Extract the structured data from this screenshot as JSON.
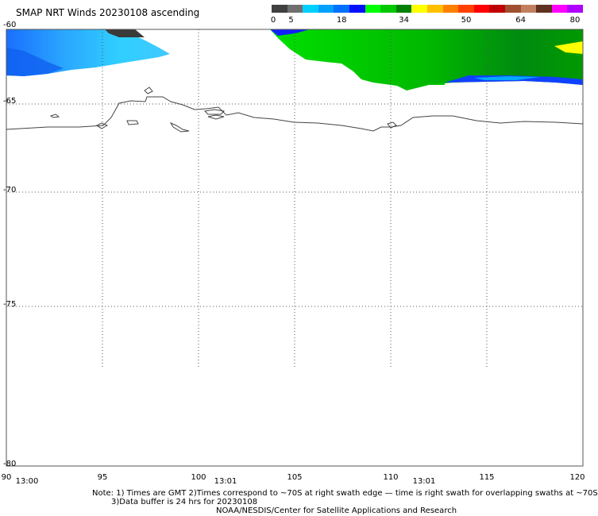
{
  "title": "SMAP NRT Winds 20230108 ascending",
  "legend": {
    "ticks": [
      "0",
      "5",
      "18",
      "34",
      "50",
      "64",
      "80"
    ],
    "colors": [
      "#404040",
      "#707070",
      "#00d0ff",
      "#00a0ff",
      "#0070ff",
      "#0010ff",
      "#00ff00",
      "#00c800",
      "#008000",
      "#ffff00",
      "#ffc000",
      "#ff8000",
      "#ff4000",
      "#ff0000",
      "#c00000",
      "#a05030",
      "#c08060",
      "#603020",
      "#ff00ff",
      "#b000ff"
    ]
  },
  "map": {
    "lat_labels": [
      "-60",
      "-65",
      "-70",
      "-75",
      "-80"
    ],
    "lon_labels": [
      "90",
      "95",
      "100",
      "105",
      "110",
      "115",
      "120"
    ],
    "time_labels": [
      "13:00",
      "13:01",
      "13:01"
    ]
  },
  "notes": {
    "line1": "Note: 1) Times are GMT 2)Times correspond to ~70S at right swath edge — time is right swath for overlapping swaths at ~70S",
    "line2": "3)Data buffer is 24 hrs for 20230108",
    "line3": "NOAA/NESDIS/Center for Satellite Applications and Research"
  }
}
